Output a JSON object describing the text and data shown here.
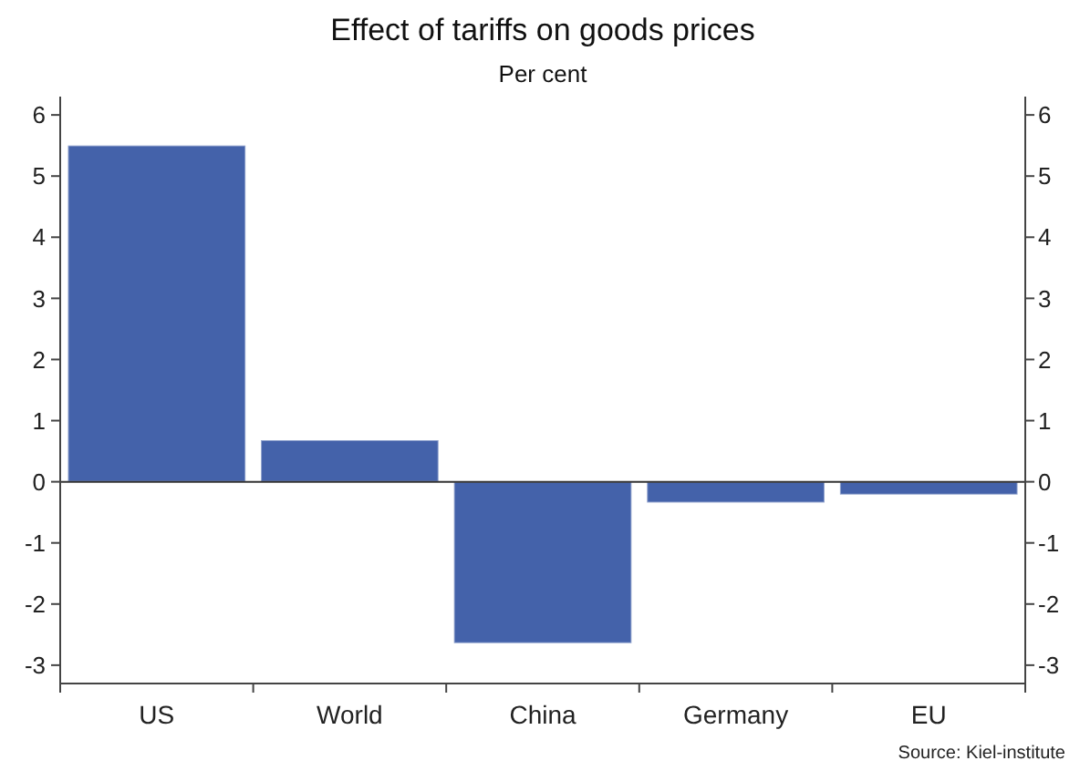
{
  "chart_data": {
    "type": "bar",
    "title": "Effect of tariffs on goods prices",
    "subtitle": "Per cent",
    "categories": [
      "US",
      "World",
      "China",
      "Germany",
      "EU"
    ],
    "values": [
      5.5,
      0.68,
      -2.64,
      -0.34,
      -0.21
    ],
    "color": "#4462aa",
    "ylim": [
      -3.3,
      6.3
    ],
    "yticks": [
      -3,
      -2,
      -1,
      0,
      1,
      2,
      3,
      4,
      5,
      6
    ],
    "y2lim": [
      -3.3,
      6.3
    ],
    "y2ticks": [
      -3,
      -2,
      -1,
      0,
      1,
      2,
      3,
      4,
      5,
      6
    ],
    "annotations": [
      "Source: Kiel-institute"
    ]
  }
}
